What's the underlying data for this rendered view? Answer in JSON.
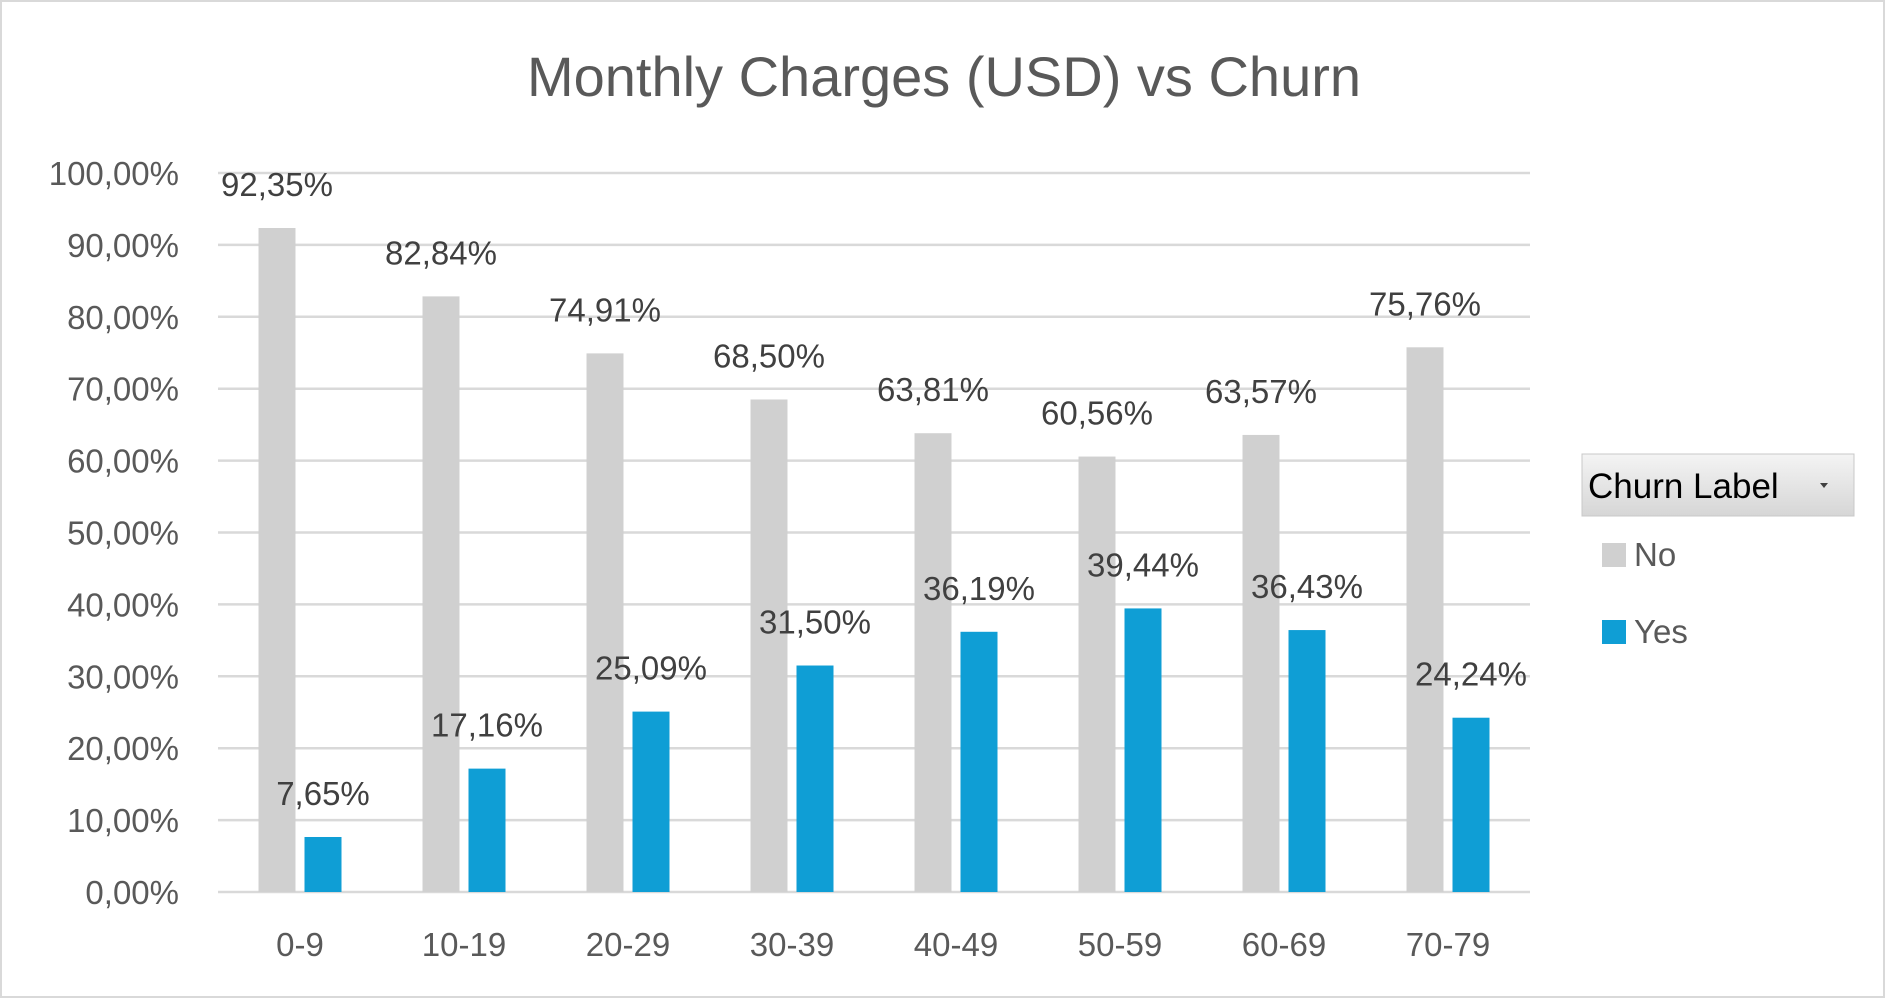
{
  "chart_data": {
    "type": "bar",
    "title": "Monthly Charges (USD) vs Churn",
    "xlabel": "",
    "ylabel": "",
    "categories": [
      "0-9",
      "10-19",
      "20-29",
      "30-39",
      "40-49",
      "50-59",
      "60-69",
      "70-79"
    ],
    "series": [
      {
        "name": "No",
        "color": "#d0d0d0",
        "values": [
          92.35,
          82.84,
          74.91,
          68.5,
          63.81,
          60.56,
          63.57,
          75.76
        ],
        "labels": [
          "92,35%",
          "82,84%",
          "74,91%",
          "68,50%",
          "63,81%",
          "60,56%",
          "63,57%",
          "75,76%"
        ]
      },
      {
        "name": "Yes",
        "color": "#0f9ed5",
        "values": [
          7.65,
          17.16,
          25.09,
          31.5,
          36.19,
          39.44,
          36.43,
          24.24
        ],
        "labels": [
          "7,65%",
          "17,16%",
          "25,09%",
          "31,50%",
          "36,19%",
          "39,44%",
          "36,43%",
          "24,24%"
        ]
      }
    ],
    "ylim": [
      0,
      100
    ],
    "yticks": [
      0,
      10,
      20,
      30,
      40,
      50,
      60,
      70,
      80,
      90,
      100
    ],
    "ytick_labels": [
      "0,00%",
      "10,00%",
      "20,00%",
      "30,00%",
      "40,00%",
      "50,00%",
      "60,00%",
      "70,00%",
      "80,00%",
      "90,00%",
      "100,00%"
    ],
    "grid": true,
    "legend": {
      "title": "Churn Label",
      "position": "right",
      "dropdown_icon": "dropdown-arrow-icon"
    }
  }
}
